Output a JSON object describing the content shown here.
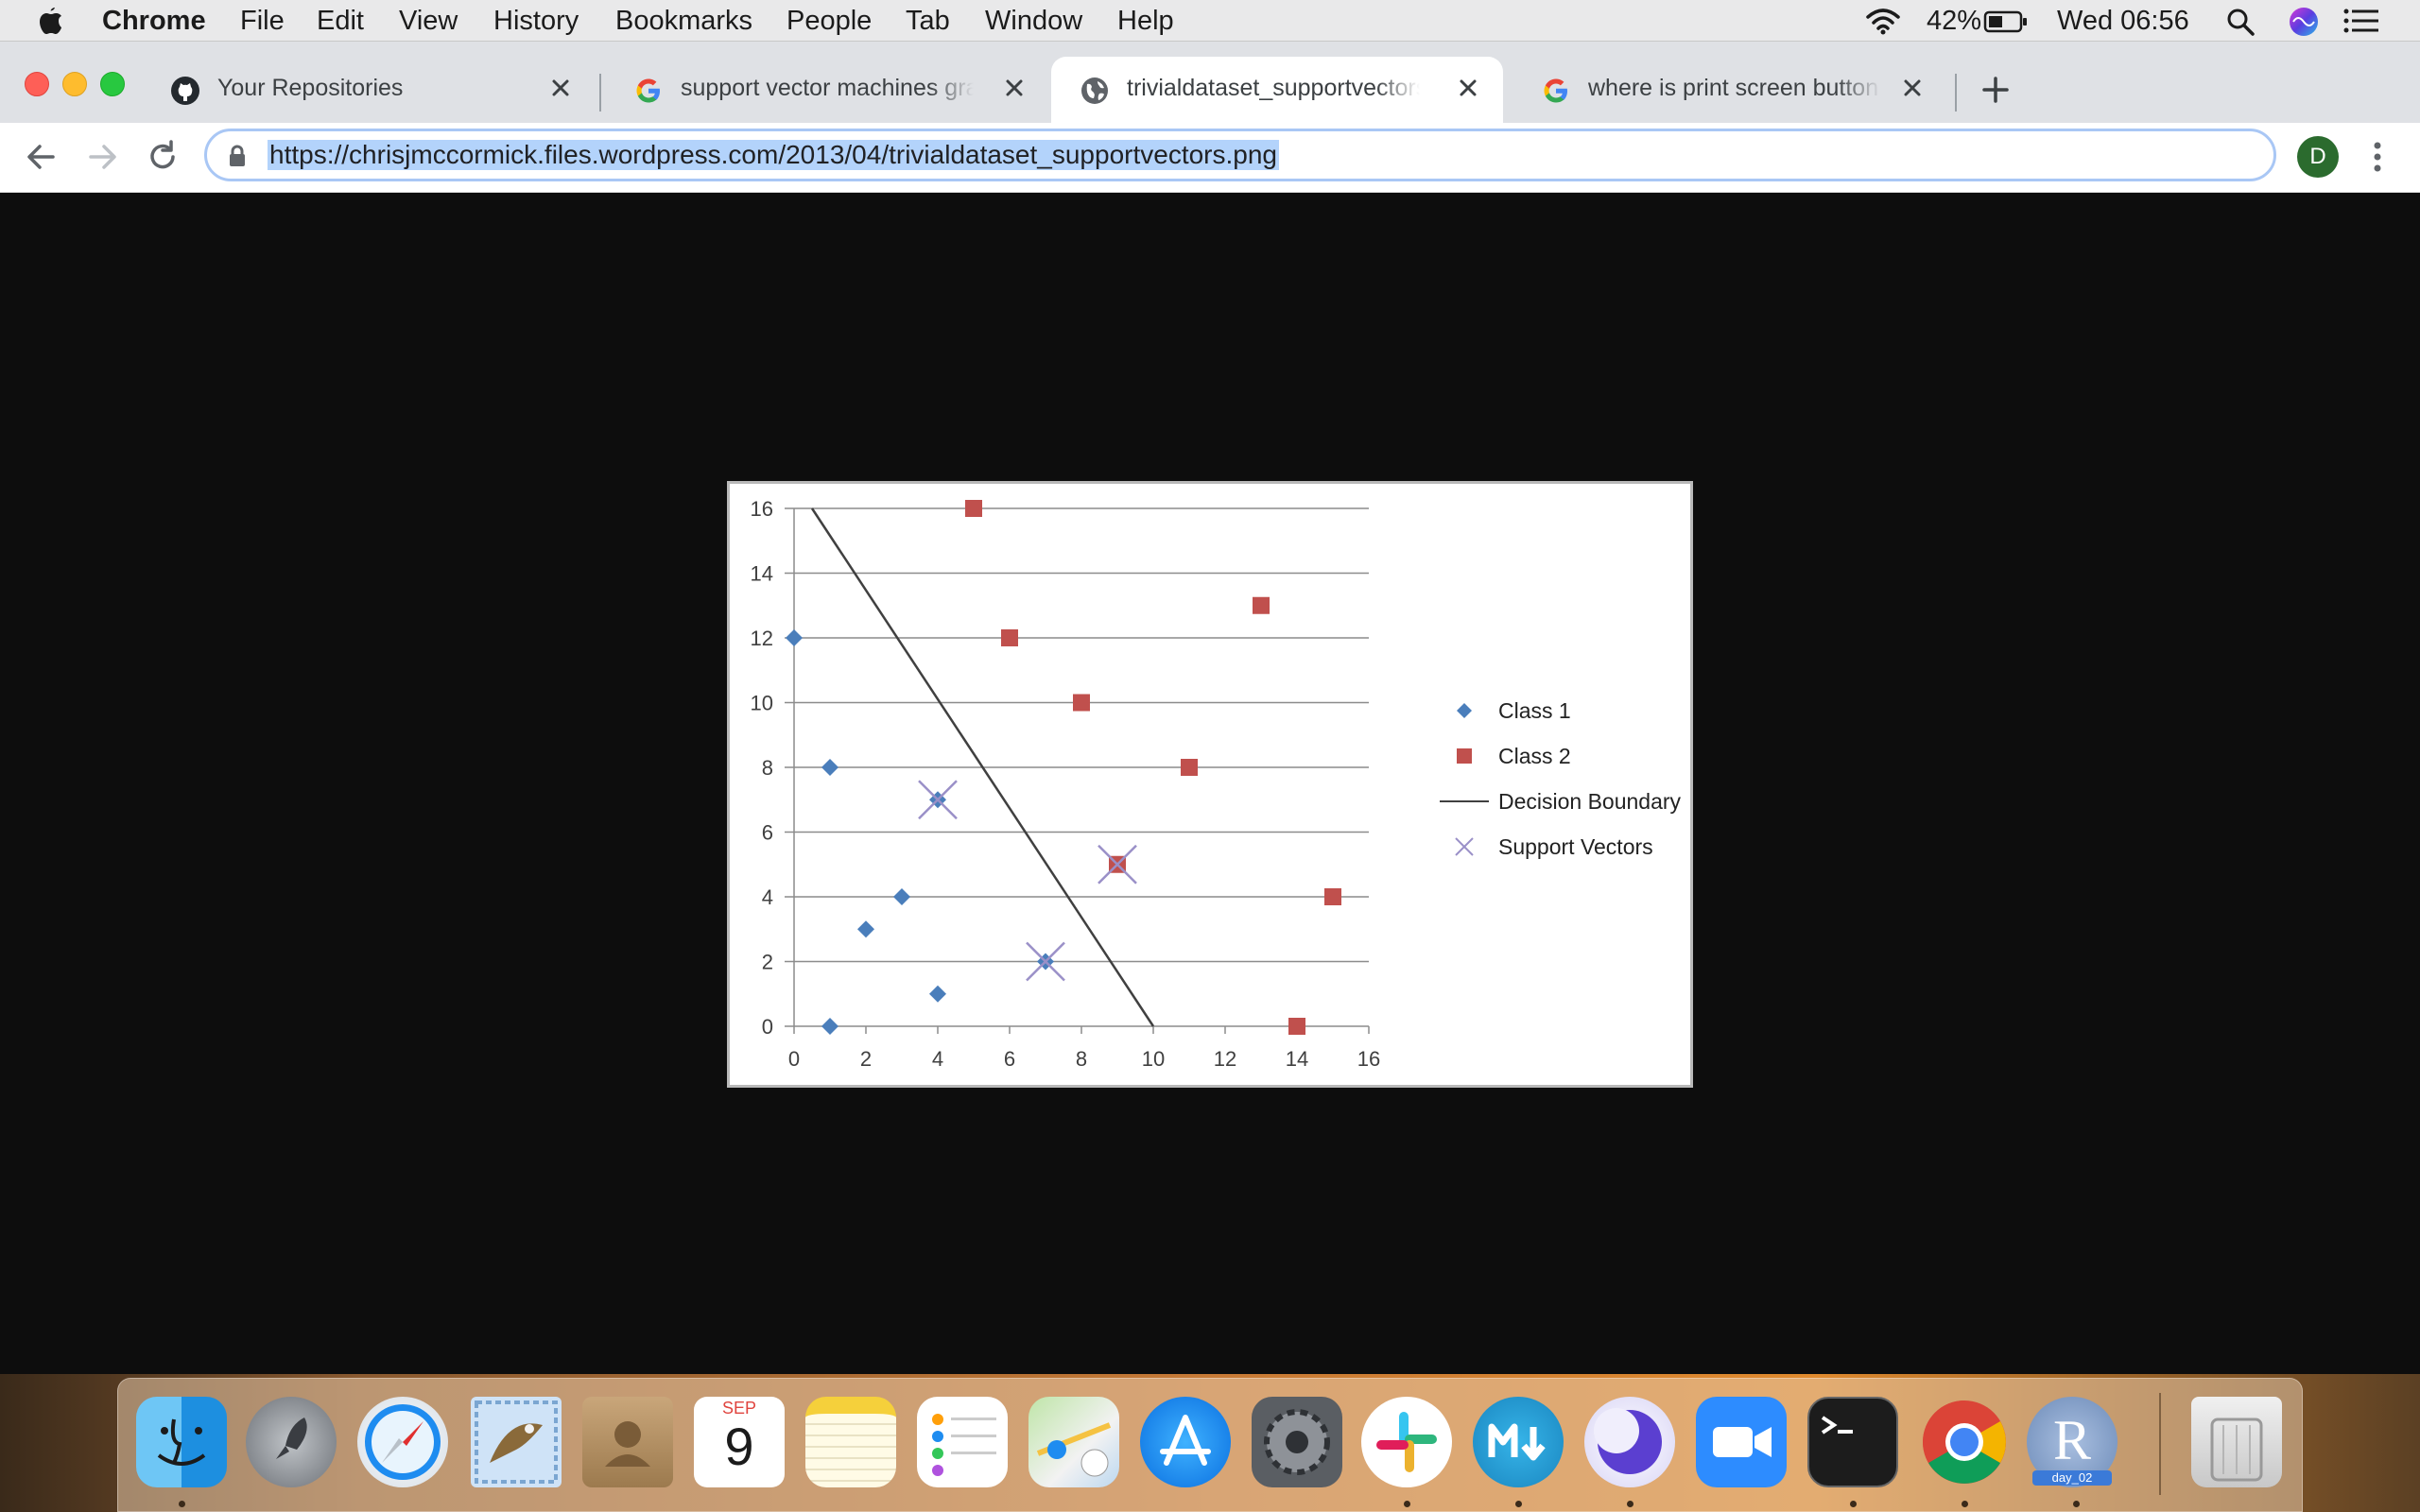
{
  "menubar": {
    "app_name": "Chrome",
    "menus": [
      "File",
      "Edit",
      "View",
      "History",
      "Bookmarks",
      "People",
      "Tab",
      "Window",
      "Help"
    ],
    "battery": "42%",
    "clock": "Wed 06:56"
  },
  "tabs": [
    {
      "title": "Your Repositories",
      "icon": "github-icon",
      "active": false
    },
    {
      "title": "support vector machines graph",
      "icon": "google-icon",
      "active": false
    },
    {
      "title": "trivialdataset_supportvectors.png",
      "icon": "globe-icon",
      "active": true
    },
    {
      "title": "where is print screen button on",
      "icon": "google-icon",
      "active": false
    }
  ],
  "toolbar": {
    "url": "https://chrisjmccormick.files.wordpress.com/2013/04/trivialdataset_supportvectors.png",
    "profile_initial": "D"
  },
  "chart_data": {
    "type": "scatter",
    "xlim": [
      0,
      16
    ],
    "ylim": [
      0,
      16
    ],
    "x_ticks": [
      "0",
      "2",
      "4",
      "6",
      "8",
      "10",
      "12",
      "14",
      "16"
    ],
    "y_ticks": [
      "0",
      "2",
      "4",
      "6",
      "8",
      "10",
      "12",
      "14",
      "16"
    ],
    "grid": "horizontal",
    "legend_position": "right",
    "series": [
      {
        "name": "Class 1",
        "marker": "diamond",
        "color": "#4a7ebb",
        "points": [
          [
            0,
            12
          ],
          [
            1,
            8
          ],
          [
            1,
            0
          ],
          [
            2,
            3
          ],
          [
            3,
            4
          ],
          [
            4,
            1
          ],
          [
            4,
            7
          ],
          [
            7,
            2
          ]
        ]
      },
      {
        "name": "Class 2",
        "marker": "square",
        "color": "#c0504d",
        "points": [
          [
            5,
            16
          ],
          [
            6,
            12
          ],
          [
            8,
            10
          ],
          [
            9,
            5
          ],
          [
            11,
            8
          ],
          [
            13,
            13
          ],
          [
            15,
            4
          ],
          [
            14,
            0
          ]
        ]
      },
      {
        "name": "Decision Boundary",
        "marker": "line",
        "color": "#404040",
        "points": [
          [
            0.5,
            16
          ],
          [
            10,
            0
          ]
        ]
      },
      {
        "name": "Support Vectors",
        "marker": "x",
        "color": "#9a90c8",
        "points": [
          [
            4,
            7
          ],
          [
            7,
            2
          ],
          [
            9,
            5
          ]
        ]
      }
    ]
  },
  "dock": {
    "calendar_month": "SEP",
    "calendar_day": "9",
    "r_label": "day_02"
  },
  "colors": {
    "accent_blue": "#1a73e8",
    "url_highlight": "#b3d3fb"
  }
}
